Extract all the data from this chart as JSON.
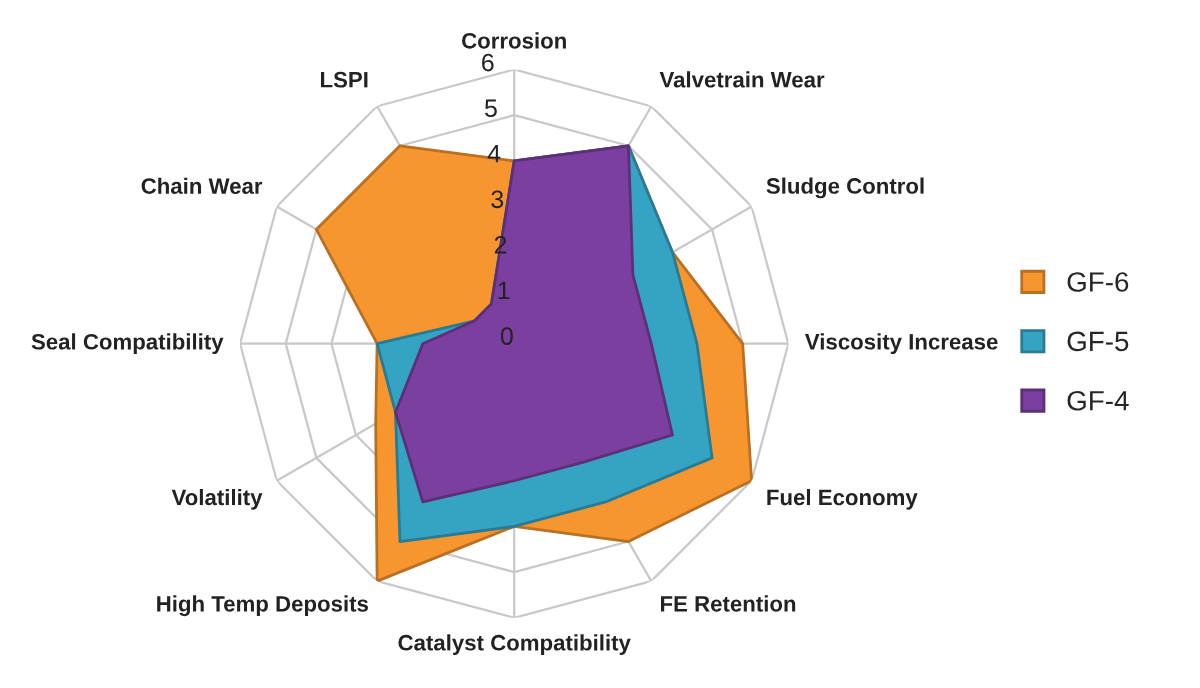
{
  "chart_data": {
    "type": "radar",
    "categories": [
      "Corrosion",
      "Valvetrain Wear",
      "Sludge Control",
      "Viscosity Increase",
      "Fuel Economy",
      "FE Retention",
      "Catalyst Compatibility",
      "High Temp Deposits",
      "Volatility",
      "Seal Compatibility",
      "Chain Wear",
      "LSPI"
    ],
    "series": [
      {
        "name": "GF-6",
        "color": "#f7962f",
        "values": [
          4,
          5,
          4,
          5,
          6,
          5,
          4,
          6,
          3.5,
          3,
          5,
          5
        ]
      },
      {
        "name": "GF-5",
        "color": "#35a4c4",
        "values": [
          4,
          5,
          4,
          4,
          5,
          4,
          4,
          5,
          3,
          3,
          1,
          1
        ]
      },
      {
        "name": "GF-4",
        "color": "#7b3fa0",
        "values": [
          4,
          5,
          3,
          3,
          4,
          3,
          3,
          4,
          3,
          2,
          1,
          1
        ]
      }
    ],
    "ylim": [
      0,
      6
    ],
    "yticks": [
      0,
      1,
      2,
      3,
      4,
      5,
      6
    ],
    "grid": true,
    "legend": "right"
  }
}
